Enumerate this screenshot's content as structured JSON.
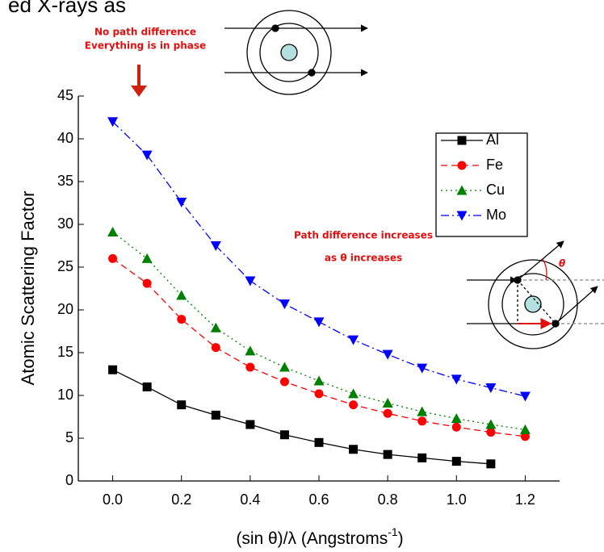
{
  "chart_data": {
    "type": "line",
    "heading_fragment": "ed X-rays as",
    "y_label": "Atomic Scattering Factor",
    "x_label": {
      "main": "(sin θ)/λ (Angstroms",
      "sup": "-1",
      "end": ")"
    },
    "annotations": [
      "No path difference",
      "Everything is in phase",
      "Path difference increases",
      "as θ increases",
      "θ"
    ],
    "x": [
      0,
      0.1,
      0.2,
      0.3,
      0.4,
      0.5,
      0.6,
      0.7,
      0.8,
      0.9,
      1.0,
      1.1,
      1.2
    ],
    "series": [
      {
        "name": "Al",
        "color": "#000000",
        "marker": "square",
        "dash": "solid",
        "values": [
          13,
          11,
          8.9,
          7.7,
          6.6,
          5.4,
          4.5,
          3.7,
          3.1,
          2.7,
          2.3,
          2.0,
          null
        ]
      },
      {
        "name": "Fe",
        "color": "#ff0000",
        "marker": "circle",
        "dash": "dash",
        "values": [
          26,
          23.1,
          18.9,
          15.6,
          13.3,
          11.6,
          10.2,
          8.9,
          7.9,
          7.0,
          6.3,
          5.7,
          5.2
        ]
      },
      {
        "name": "Cu",
        "color": "#008000",
        "marker": "triangle-up",
        "dash": "dot",
        "values": [
          29.1,
          26,
          21.7,
          17.9,
          15.2,
          13.3,
          11.7,
          10.2,
          9.1,
          8.1,
          7.3,
          6.6,
          6.0
        ]
      },
      {
        "name": "Mo",
        "color": "#0000ff",
        "marker": "triangle-down",
        "dash": "dashdot",
        "values": [
          42,
          38.1,
          32.6,
          27.5,
          23.4,
          20.7,
          18.6,
          16.5,
          14.8,
          13.2,
          11.9,
          10.9,
          9.9
        ]
      }
    ],
    "xlim": [
      -0.1,
      1.3
    ],
    "ylim": [
      0,
      45
    ],
    "xticks": [
      {
        "value": 0,
        "label": "0.0"
      },
      0.2,
      0.4,
      0.6,
      0.8,
      {
        "value": 1,
        "label": "1.0"
      },
      1.2
    ],
    "yticks": [
      0,
      5,
      10,
      15,
      20,
      25,
      30,
      35,
      40,
      45
    ],
    "legend": "upper right"
  }
}
